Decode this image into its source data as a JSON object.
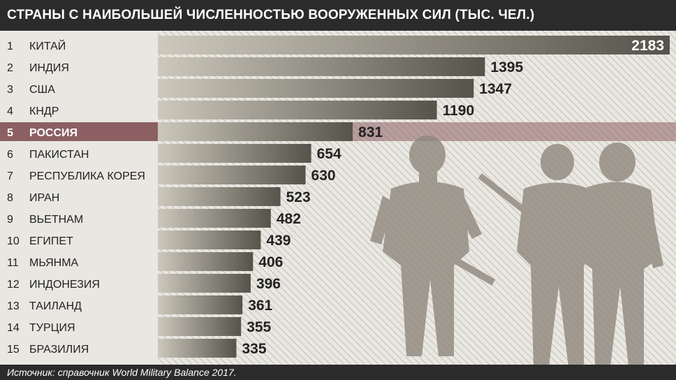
{
  "header": {
    "title": "СТРАНЫ С НАИБОЛЬШЕЙ ЧИСЛЕННОСТЬЮ ВООРУЖЕННЫХ СИЛ (ТЫС. ЧЕЛ.)"
  },
  "footer": {
    "source": "Источник: справочник World Military Balance 2017."
  },
  "colors": {
    "header_bg": "#2b2b2b",
    "page_bg": "#e9e7e1",
    "hatch": "#b9b4aa",
    "bar_light": "#ccc8bc",
    "bar_dark": "#56534a",
    "highlight_row": "#8c5f63",
    "silhouette": "#8e877c",
    "text": "#222222"
  },
  "chart_data": {
    "type": "bar",
    "orientation": "horizontal",
    "highlight_index": 4,
    "xlim": [
      0,
      2183
    ],
    "ranks": [
      "1",
      "2",
      "3",
      "4",
      "5",
      "6",
      "7",
      "8",
      "9",
      "10",
      "11",
      "12",
      "13",
      "14",
      "15"
    ],
    "categories": [
      "КИТАЙ",
      "ИНДИЯ",
      "США",
      "КНДР",
      "РОССИЯ",
      "ПАКИСТАН",
      "РЕСПУБЛИКА КОРЕЯ",
      "ИРАН",
      "ВЬЕТНАМ",
      "ЕГИПЕТ",
      "МЬЯНМА",
      "ИНДОНЕЗИЯ",
      "ТАИЛАНД",
      "ТУРЦИЯ",
      "БРАЗИЛИЯ"
    ],
    "values": [
      2183,
      1395,
      1347,
      1190,
      831,
      654,
      630,
      523,
      482,
      439,
      406,
      396,
      361,
      355,
      335
    ]
  }
}
